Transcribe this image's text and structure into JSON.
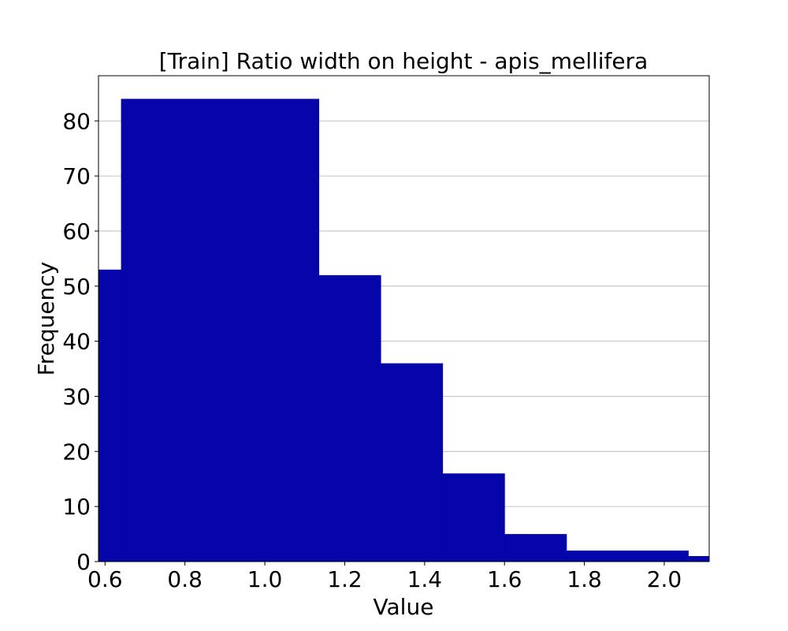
{
  "chart_data": {
    "type": "bar",
    "subtype": "histogram",
    "title": "[Train] Ratio width on height - apis_mellifera",
    "xlabel": "Value",
    "ylabel": "Frequency",
    "xlim": [
      0.5836,
      2.1125
    ],
    "ylim": [
      0,
      88.2
    ],
    "bar_color": "#0505aa",
    "grid": "horizontal",
    "bins": [
      {
        "x0": 0.52,
        "x1": 0.64,
        "count": 53
      },
      {
        "x0": 0.64,
        "x1": 0.8,
        "count": 84
      },
      {
        "x0": 0.8,
        "x1": 0.96,
        "count": 84
      },
      {
        "x0": 0.96,
        "x1": 1.135,
        "count": 84
      },
      {
        "x0": 1.135,
        "x1": 1.29,
        "count": 52
      },
      {
        "x0": 1.29,
        "x1": 1.445,
        "count": 36
      },
      {
        "x0": 1.445,
        "x1": 1.6,
        "count": 16
      },
      {
        "x0": 1.6,
        "x1": 1.755,
        "count": 5
      },
      {
        "x0": 1.755,
        "x1": 1.91,
        "count": 2
      },
      {
        "x0": 1.91,
        "x1": 2.06,
        "count": 2
      },
      {
        "x0": 2.06,
        "x1": 2.12,
        "count": 1
      }
    ],
    "x_ticks": [
      {
        "value": 0.6,
        "label": "0.6"
      },
      {
        "value": 0.8,
        "label": "0.8"
      },
      {
        "value": 1.0,
        "label": "1.0"
      },
      {
        "value": 1.2,
        "label": "1.2"
      },
      {
        "value": 1.4,
        "label": "1.4"
      },
      {
        "value": 1.6,
        "label": "1.6"
      },
      {
        "value": 1.8,
        "label": "1.8"
      },
      {
        "value": 2.0,
        "label": "2.0"
      }
    ],
    "y_ticks": [
      {
        "value": 0,
        "label": "0"
      },
      {
        "value": 10,
        "label": "10"
      },
      {
        "value": 20,
        "label": "20"
      },
      {
        "value": 30,
        "label": "30"
      },
      {
        "value": 40,
        "label": "40"
      },
      {
        "value": 50,
        "label": "50"
      },
      {
        "value": 60,
        "label": "60"
      },
      {
        "value": 70,
        "label": "70"
      },
      {
        "value": 80,
        "label": "80"
      }
    ]
  }
}
